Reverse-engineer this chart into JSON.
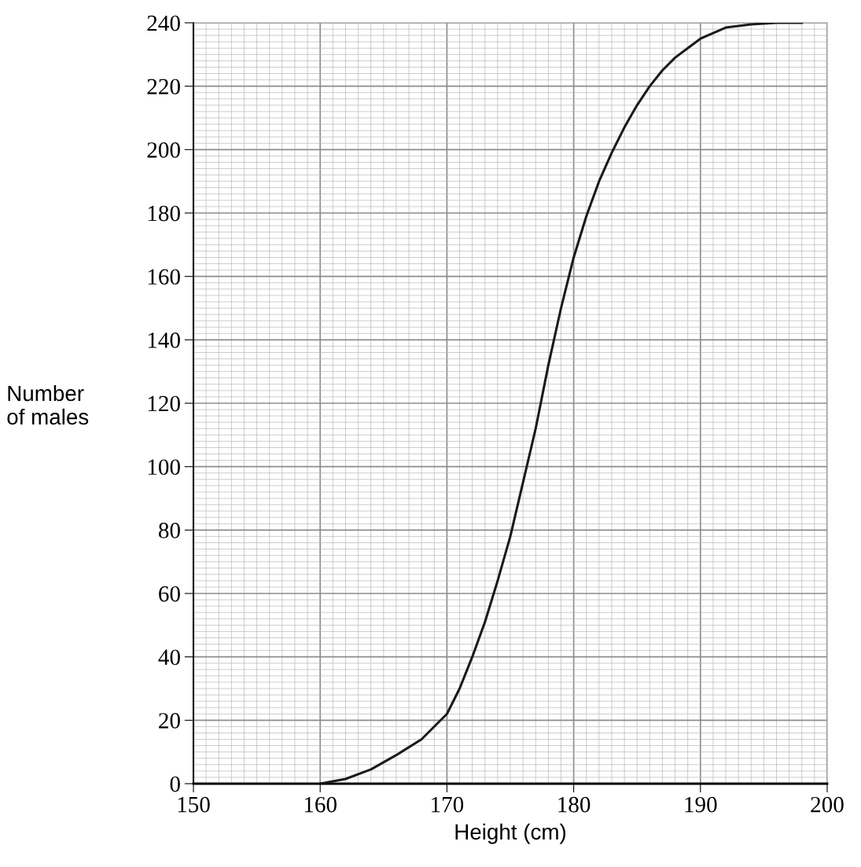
{
  "chart_data": {
    "type": "line",
    "xlabel": "Height (cm)",
    "ylabel": "Number\nof males",
    "x": [
      160,
      162,
      164,
      166,
      168,
      170,
      171,
      172,
      173,
      174,
      175,
      176,
      177,
      178,
      179,
      180,
      181,
      182,
      183,
      184,
      185,
      186,
      187,
      188,
      189,
      190,
      192,
      194,
      196,
      198
    ],
    "series": [
      {
        "color": "#1a1a1a",
        "values": [
          0,
          1.5,
          4.5,
          9,
          14,
          22,
          30,
          40,
          51,
          64,
          78,
          95,
          112,
          132,
          150,
          166,
          179,
          190,
          199,
          207,
          214,
          220,
          225,
          229,
          232,
          235,
          238.5,
          239.5,
          240,
          240
        ]
      }
    ],
    "xlim": [
      150,
      200
    ],
    "xticks": [
      150,
      160,
      170,
      180,
      190,
      200
    ],
    "ylim": [
      0,
      240
    ],
    "yticks": [
      0,
      20,
      40,
      60,
      80,
      100,
      120,
      140,
      160,
      180,
      200,
      220,
      240
    ],
    "grid": true,
    "marker": "none",
    "line_style": "solid"
  }
}
